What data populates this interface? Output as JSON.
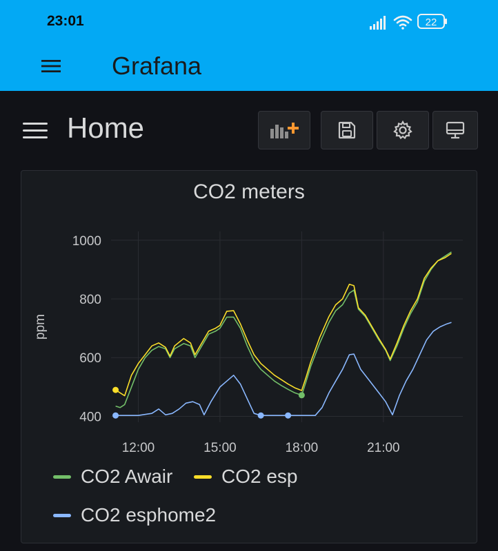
{
  "status": {
    "time": "23:01",
    "battery": "22"
  },
  "app": {
    "title": "Grafana"
  },
  "dashboard": {
    "title": "Home"
  },
  "toolbar": {
    "add_panel": "add-panel-icon",
    "save": "save-icon",
    "settings": "settings-icon",
    "view": "monitor-icon"
  },
  "panel": {
    "title": "CO2 meters"
  },
  "chart_data": {
    "type": "line",
    "title": "CO2 meters",
    "xlabel": "",
    "ylabel": "ppm",
    "x_ticks": [
      "12:00",
      "15:00",
      "18:00",
      "21:00"
    ],
    "y_ticks": [
      400,
      600,
      800,
      1000
    ],
    "xlim": [
      "11:00",
      "23:55"
    ],
    "ylim": [
      380,
      1030
    ],
    "grid": true,
    "legend_position": "bottom",
    "series": [
      {
        "name": "CO2 Awair",
        "color": "#73bf69",
        "points": [
          [
            "11:10",
            435
          ],
          [
            "11:20",
            430
          ],
          [
            "11:30",
            440
          ],
          [
            "11:45",
            500
          ],
          [
            "12:00",
            560
          ],
          [
            "12:15",
            600
          ],
          [
            "12:30",
            625
          ],
          [
            "12:45",
            638
          ],
          [
            "13:00",
            630
          ],
          [
            "13:10",
            600
          ],
          [
            "13:20",
            630
          ],
          [
            "13:40",
            648
          ],
          [
            "13:55",
            640
          ],
          [
            "14:05",
            600
          ],
          [
            "14:20",
            640
          ],
          [
            "14:35",
            680
          ],
          [
            "14:50",
            690
          ],
          [
            "15:00",
            700
          ],
          [
            "15:15",
            738
          ],
          [
            "15:30",
            738
          ],
          [
            "15:45",
            700
          ],
          [
            "16:00",
            640
          ],
          [
            "16:15",
            590
          ],
          [
            "16:30",
            560
          ],
          [
            "16:45",
            540
          ],
          [
            "17:00",
            520
          ],
          [
            "17:15",
            505
          ],
          [
            "17:30",
            492
          ],
          [
            "17:45",
            480
          ],
          [
            "18:00",
            472
          ],
          [
            "18:10",
            520
          ],
          [
            "18:20",
            570
          ],
          [
            "18:40",
            650
          ],
          [
            "19:00",
            720
          ],
          [
            "19:15",
            760
          ],
          [
            "19:30",
            780
          ],
          [
            "19:45",
            820
          ],
          [
            "19:55",
            830
          ],
          [
            "20:05",
            765
          ],
          [
            "20:20",
            740
          ],
          [
            "20:35",
            700
          ],
          [
            "20:50",
            660
          ],
          [
            "21:05",
            625
          ],
          [
            "21:15",
            590
          ],
          [
            "21:30",
            640
          ],
          [
            "21:45",
            700
          ],
          [
            "22:00",
            750
          ],
          [
            "22:15",
            790
          ],
          [
            "22:30",
            860
          ],
          [
            "22:45",
            900
          ],
          [
            "23:00",
            930
          ],
          [
            "23:15",
            945
          ],
          [
            "23:30",
            960
          ]
        ]
      },
      {
        "name": "CO2 esp",
        "color": "#fade2a",
        "points": [
          [
            "11:10",
            490
          ],
          [
            "11:20",
            480
          ],
          [
            "11:30",
            470
          ],
          [
            "11:45",
            540
          ],
          [
            "12:00",
            580
          ],
          [
            "12:15",
            610
          ],
          [
            "12:30",
            640
          ],
          [
            "12:45",
            650
          ],
          [
            "13:00",
            635
          ],
          [
            "13:10",
            605
          ],
          [
            "13:20",
            640
          ],
          [
            "13:40",
            665
          ],
          [
            "13:55",
            650
          ],
          [
            "14:05",
            610
          ],
          [
            "14:20",
            650
          ],
          [
            "14:35",
            690
          ],
          [
            "14:50",
            700
          ],
          [
            "15:00",
            710
          ],
          [
            "15:15",
            758
          ],
          [
            "15:30",
            760
          ],
          [
            "15:45",
            715
          ],
          [
            "16:00",
            660
          ],
          [
            "16:15",
            610
          ],
          [
            "16:30",
            580
          ],
          [
            "16:45",
            560
          ],
          [
            "17:00",
            540
          ],
          [
            "17:15",
            525
          ],
          [
            "17:30",
            510
          ],
          [
            "17:45",
            497
          ],
          [
            "18:00",
            488
          ],
          [
            "18:10",
            535
          ],
          [
            "18:20",
            585
          ],
          [
            "18:40",
            670
          ],
          [
            "19:00",
            740
          ],
          [
            "19:15",
            780
          ],
          [
            "19:30",
            800
          ],
          [
            "19:45",
            850
          ],
          [
            "19:55",
            845
          ],
          [
            "20:05",
            770
          ],
          [
            "20:20",
            745
          ],
          [
            "20:35",
            705
          ],
          [
            "20:50",
            665
          ],
          [
            "21:05",
            628
          ],
          [
            "21:15",
            595
          ],
          [
            "21:30",
            650
          ],
          [
            "21:45",
            710
          ],
          [
            "22:00",
            760
          ],
          [
            "22:15",
            800
          ],
          [
            "22:30",
            870
          ],
          [
            "22:45",
            905
          ],
          [
            "23:00",
            930
          ],
          [
            "23:15",
            940
          ],
          [
            "23:30",
            955
          ]
        ]
      },
      {
        "name": "CO2 esphome2",
        "color": "#8ab8ff",
        "points": [
          [
            "11:10",
            403
          ],
          [
            "11:30",
            403
          ],
          [
            "12:00",
            403
          ],
          [
            "12:30",
            410
          ],
          [
            "12:45",
            425
          ],
          [
            "13:00",
            405
          ],
          [
            "13:15",
            410
          ],
          [
            "13:30",
            425
          ],
          [
            "13:45",
            445
          ],
          [
            "14:00",
            450
          ],
          [
            "14:15",
            440
          ],
          [
            "14:25",
            405
          ],
          [
            "14:40",
            450
          ],
          [
            "15:00",
            500
          ],
          [
            "15:15",
            520
          ],
          [
            "15:30",
            540
          ],
          [
            "15:45",
            510
          ],
          [
            "16:00",
            460
          ],
          [
            "16:15",
            410
          ],
          [
            "16:30",
            403
          ],
          [
            "17:00",
            403
          ],
          [
            "17:30",
            403
          ],
          [
            "18:00",
            403
          ],
          [
            "18:30",
            403
          ],
          [
            "18:45",
            430
          ],
          [
            "19:00",
            480
          ],
          [
            "19:15",
            520
          ],
          [
            "19:30",
            560
          ],
          [
            "19:45",
            610
          ],
          [
            "19:55",
            612
          ],
          [
            "20:10",
            560
          ],
          [
            "20:30",
            520
          ],
          [
            "20:50",
            480
          ],
          [
            "21:05",
            450
          ],
          [
            "21:20",
            405
          ],
          [
            "21:35",
            470
          ],
          [
            "21:50",
            520
          ],
          [
            "22:05",
            560
          ],
          [
            "22:20",
            610
          ],
          [
            "22:35",
            660
          ],
          [
            "22:50",
            690
          ],
          [
            "23:05",
            705
          ],
          [
            "23:20",
            715
          ],
          [
            "23:30",
            720
          ]
        ]
      }
    ],
    "markers": [
      {
        "series": "CO2 esp",
        "x": "11:10",
        "y": 490
      },
      {
        "series": "CO2 esphome2",
        "x": "11:10",
        "y": 403
      },
      {
        "series": "CO2 esphome2",
        "x": "16:30",
        "y": 403
      },
      {
        "series": "CO2 esphome2",
        "x": "17:30",
        "y": 403
      },
      {
        "series": "CO2 Awair",
        "x": "18:00",
        "y": 472
      }
    ]
  },
  "legend": [
    {
      "label": "CO2 Awair",
      "color": "#73bf69"
    },
    {
      "label": "CO2 esp",
      "color": "#fade2a"
    },
    {
      "label": "CO2 esphome2",
      "color": "#8ab8ff"
    }
  ]
}
